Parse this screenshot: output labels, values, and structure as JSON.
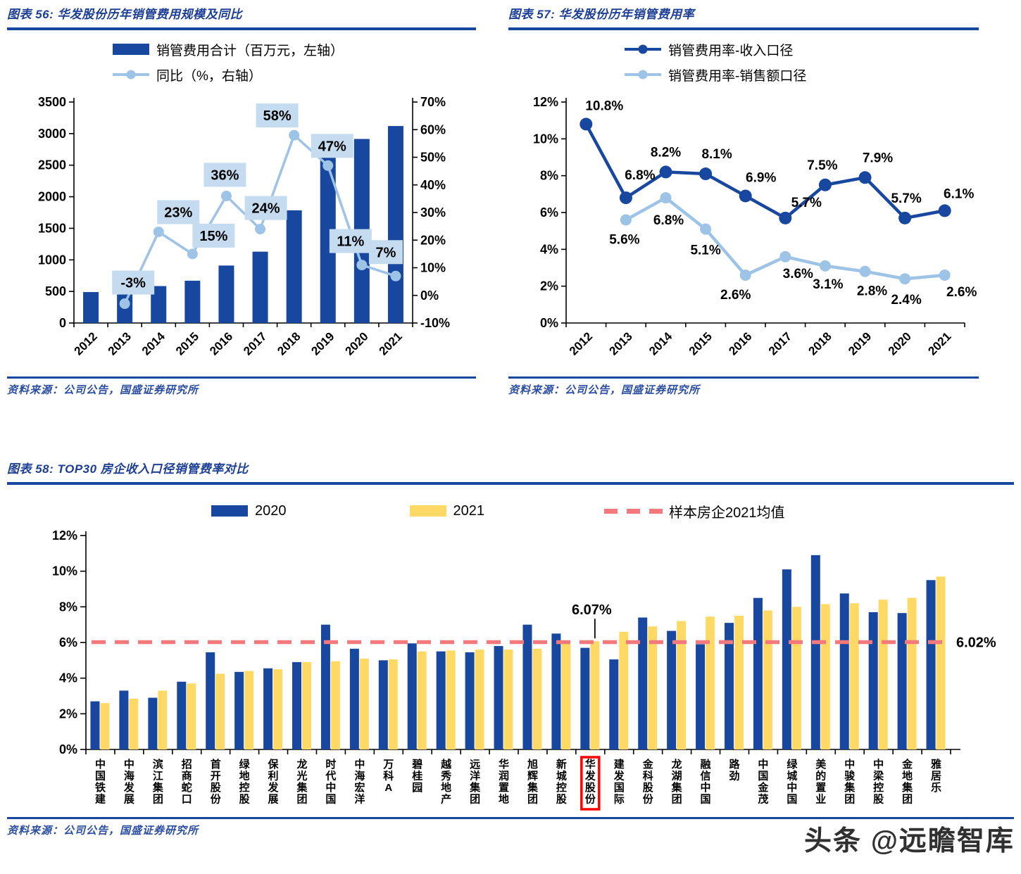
{
  "watermark": "头条 @远瞻智库",
  "colors": {
    "bar_blue": "#17479E",
    "light_blue": "#9DC3E6",
    "label_box": "#C5DCF0",
    "yellow": "#FFD966",
    "mean_red": "#F4797C",
    "highlight_red": "#FF0000",
    "title_blue": "#1C3E95",
    "rule_blue": "#17479E",
    "source_blue": "#2B4EA2"
  },
  "chart_data": [
    {
      "id": "figure-56",
      "type": "bar+line",
      "title": "图表 56:  华发股份历年销管费用规模及同比",
      "source": "资料来源：公司公告，国盛证券研究所",
      "categories": [
        "2012",
        "2013",
        "2014",
        "2015",
        "2016",
        "2017",
        "2018",
        "2019",
        "2020",
        "2021"
      ],
      "series": [
        {
          "name": "销管费用合计（百万元，左轴）",
          "type": "bar",
          "axis": "left",
          "values": [
            490,
            475,
            585,
            670,
            910,
            1130,
            1785,
            2625,
            2915,
            3120
          ]
        },
        {
          "name": "同比（%，右轴）",
          "type": "line",
          "axis": "right",
          "values": [
            null,
            -3,
            23,
            15,
            36,
            24,
            58,
            47,
            11,
            7
          ],
          "point_labels": [
            null,
            "-3%",
            "23%",
            "15%",
            "36%",
            "24%",
            "58%",
            "47%",
            "11%",
            "7%"
          ]
        }
      ],
      "left_axis": {
        "min": 0,
        "max": 3500,
        "step": 500
      },
      "right_axis": {
        "min": -10,
        "max": 70,
        "step": 10,
        "suffix": "%"
      }
    },
    {
      "id": "figure-57",
      "type": "line",
      "title": "图表 57:  华发股份历年销管费用率",
      "source": "资料来源：公司公告，国盛证券研究所",
      "categories": [
        "2012",
        "2013",
        "2014",
        "2015",
        "2016",
        "2017",
        "2018",
        "2019",
        "2020",
        "2021"
      ],
      "series": [
        {
          "name": "销管费用率-收入口径",
          "values": [
            10.8,
            6.8,
            8.2,
            8.1,
            6.9,
            5.7,
            7.5,
            7.9,
            5.7,
            6.1
          ],
          "point_labels": [
            "10.8%",
            "6.8%",
            "8.2%",
            "8.1%",
            "6.9%",
            "5.7%",
            "7.5%",
            "7.9%",
            "5.7%",
            "6.1%"
          ]
        },
        {
          "name": "销管费用率-销售额口径",
          "values": [
            null,
            5.6,
            6.8,
            5.1,
            2.6,
            3.6,
            3.1,
            2.8,
            2.4,
            2.6
          ],
          "point_labels": [
            null,
            "5.6%",
            "6.8%",
            "5.1%",
            "2.6%",
            "3.6%",
            "3.1%",
            "2.8%",
            "2.4%",
            "2.6%"
          ]
        }
      ],
      "y_axis": {
        "min": 0,
        "max": 12,
        "step": 2,
        "suffix": "%"
      }
    },
    {
      "id": "figure-58",
      "type": "bar",
      "title": "图表 58:  TOP30 房企收入口径销管费率对比",
      "source": "资料来源：公司公告，国盛证券研究所",
      "categories": [
        "中国铁建",
        "中海发展",
        "滨江集团",
        "招商蛇口",
        "首开股份",
        "绿地控股",
        "保利发展",
        "龙光集团",
        "时代中国",
        "中海宏洋",
        "万科A",
        "碧桂园",
        "越秀地产",
        "远洋集团",
        "华润置地",
        "旭辉集团",
        "新城控股",
        "华发股份",
        "建发国际",
        "金科股份",
        "龙湖集团",
        "融信中国",
        "路劲",
        "中国金茂",
        "绿城中国",
        "美的置业",
        "中骏集团",
        "中梁控股",
        "金地集团",
        "雅居乐"
      ],
      "series": [
        {
          "name": "2020",
          "values": [
            2.7,
            3.3,
            2.9,
            3.8,
            5.45,
            4.35,
            4.55,
            4.9,
            7.0,
            5.65,
            5.0,
            5.95,
            5.5,
            5.45,
            5.8,
            7.0,
            6.5,
            5.7,
            5.05,
            7.4,
            6.65,
            5.9,
            7.1,
            8.5,
            10.1,
            10.9,
            8.75,
            7.7,
            7.65,
            9.5
          ]
        },
        {
          "name": "2021",
          "values": [
            2.6,
            2.85,
            3.3,
            3.7,
            4.25,
            4.4,
            4.5,
            4.9,
            4.95,
            5.1,
            5.05,
            5.5,
            5.55,
            5.6,
            5.6,
            5.65,
            5.95,
            6.07,
            6.6,
            6.9,
            7.2,
            7.45,
            7.5,
            7.8,
            8.0,
            8.15,
            8.2,
            8.4,
            8.5,
            9.7
          ]
        }
      ],
      "mean_line": {
        "name": "样本房企2021均值",
        "value": 6.02,
        "label": "6.02%"
      },
      "annotation": {
        "category": "华发股份",
        "series": "2021",
        "value": 6.07,
        "label": "6.07%"
      },
      "highlight_category": "华发股份",
      "y_axis": {
        "min": 0,
        "max": 12,
        "step": 2,
        "suffix": "%"
      }
    }
  ]
}
